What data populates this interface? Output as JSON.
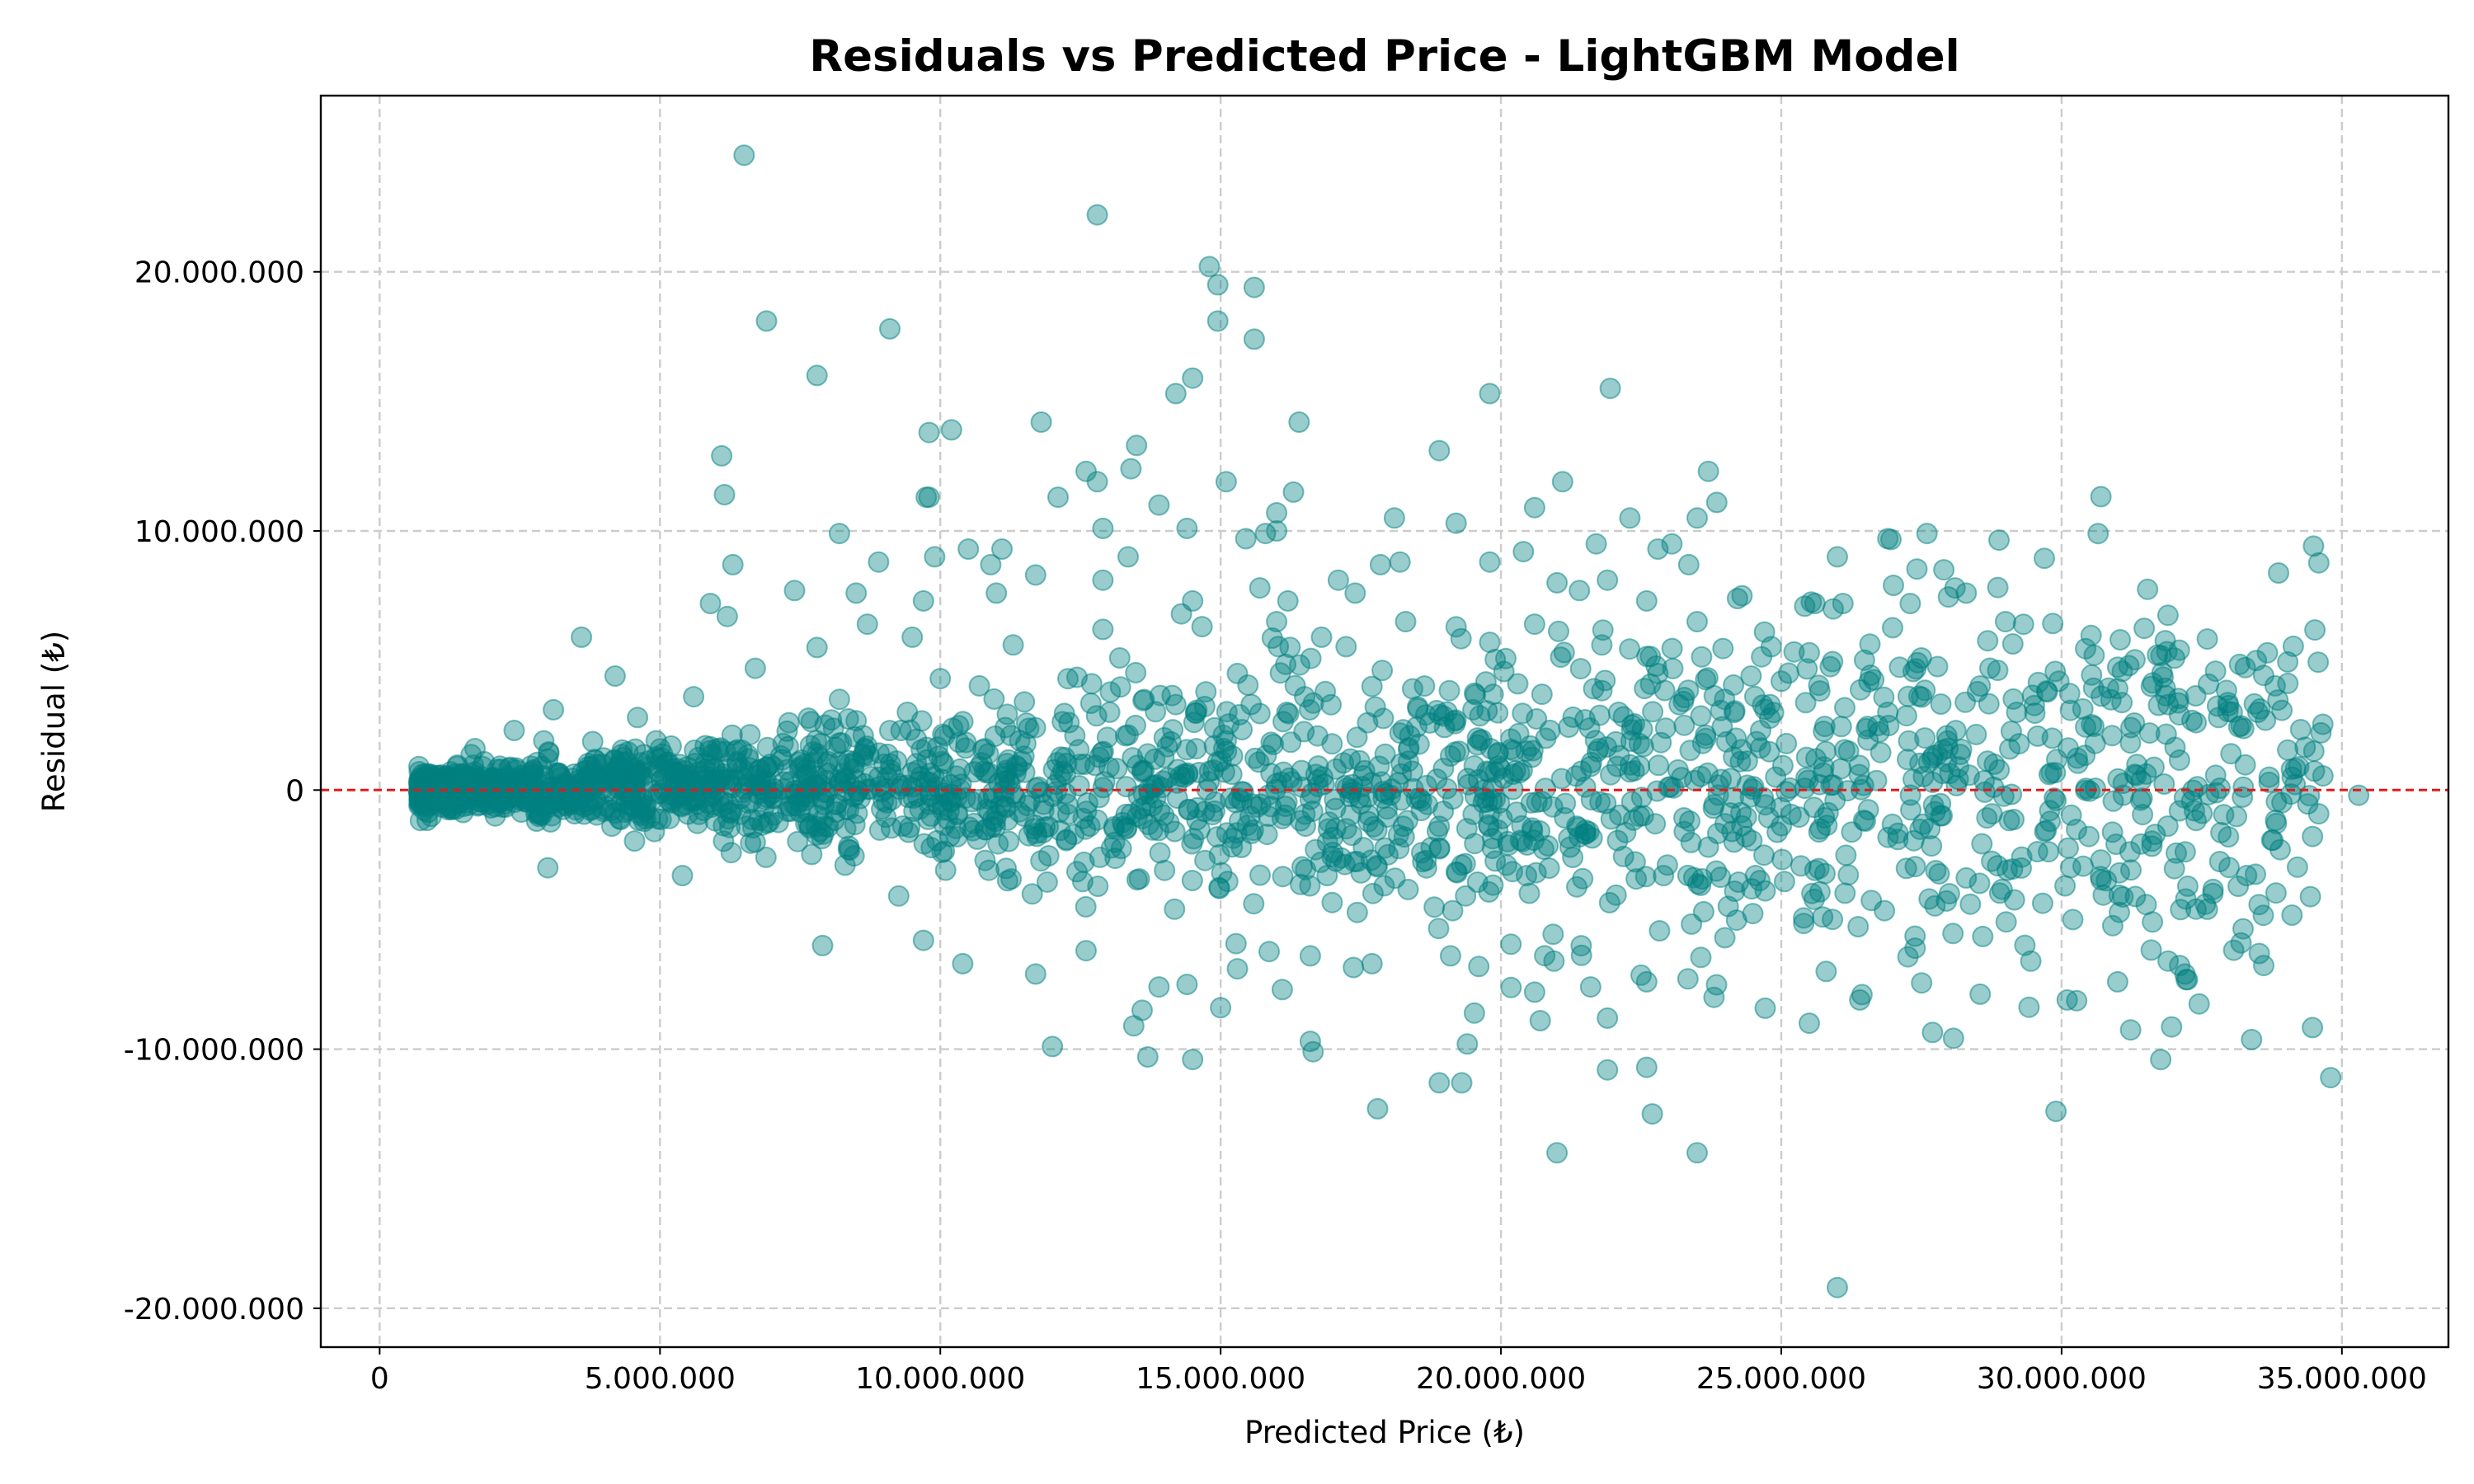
{
  "chart_data": {
    "type": "scatter",
    "title": "Residuals vs Predicted Price - LightGBM Model",
    "xlabel": "Predicted Price (₺)",
    "ylabel": "Residual (₺)",
    "xlim": [
      -1050000,
      36900000
    ],
    "ylim": [
      -21500000,
      26800000
    ],
    "x_ticks": [
      0,
      5000000,
      10000000,
      15000000,
      20000000,
      25000000,
      30000000,
      35000000
    ],
    "x_tick_labels": [
      "0",
      "5.000.000",
      "10.000.000",
      "15.000.000",
      "20.000.000",
      "25.000.000",
      "30.000.000",
      "35.000.000"
    ],
    "y_ticks": [
      -20000000,
      -10000000,
      0,
      10000000,
      20000000
    ],
    "y_tick_labels": [
      "-20.000.000",
      "-10.000.000",
      "0",
      "10.000.000",
      "20.000.000"
    ],
    "grid": true,
    "reference_line": {
      "y": 0,
      "color": "#e31a1c",
      "style": "dashed"
    },
    "point_color": "#008080",
    "point_alpha": 0.4,
    "points": [
      [
        6500000,
        24500000
      ],
      [
        12800000,
        22200000
      ],
      [
        14800000,
        20200000
      ],
      [
        14950000,
        19500000
      ],
      [
        15600000,
        19400000
      ],
      [
        6900000,
        18100000
      ],
      [
        14950000,
        18100000
      ],
      [
        9100000,
        17800000
      ],
      [
        15600000,
        17400000
      ],
      [
        7800000,
        16000000
      ],
      [
        14500000,
        15900000
      ],
      [
        14200000,
        15300000
      ],
      [
        19800000,
        15300000
      ],
      [
        21950000,
        15500000
      ],
      [
        11800000,
        14200000
      ],
      [
        16400000,
        14200000
      ],
      [
        9800000,
        13800000
      ],
      [
        10200000,
        13900000
      ],
      [
        13500000,
        13300000
      ],
      [
        6100000,
        12900000
      ],
      [
        18900000,
        13100000
      ],
      [
        12600000,
        12300000
      ],
      [
        12800000,
        11900000
      ],
      [
        13400000,
        12400000
      ],
      [
        15100000,
        11900000
      ],
      [
        21100000,
        11900000
      ],
      [
        23700000,
        12300000
      ],
      [
        6150000,
        11400000
      ],
      [
        9750000,
        11300000
      ],
      [
        9800000,
        11300000
      ],
      [
        12100000,
        11300000
      ],
      [
        13900000,
        11000000
      ],
      [
        16300000,
        11500000
      ],
      [
        20600000,
        10900000
      ],
      [
        23850000,
        11100000
      ],
      [
        16000000,
        10700000
      ],
      [
        18100000,
        10500000
      ],
      [
        22300000,
        10500000
      ],
      [
        23500000,
        10500000
      ],
      [
        12900000,
        10100000
      ],
      [
        14400000,
        10100000
      ],
      [
        15800000,
        9900000
      ],
      [
        16000000,
        10000000
      ],
      [
        19200000,
        10300000
      ],
      [
        8200000,
        9900000
      ],
      [
        15450000,
        9700000
      ],
      [
        21700000,
        9500000
      ],
      [
        22800000,
        9300000
      ],
      [
        26900000,
        9700000
      ],
      [
        27600000,
        9900000
      ],
      [
        13350000,
        9000000
      ],
      [
        10500000,
        9300000
      ],
      [
        11100000,
        9300000
      ],
      [
        19800000,
        8800000
      ],
      [
        20400000,
        9200000
      ],
      [
        23050000,
        9500000
      ],
      [
        23350000,
        8700000
      ],
      [
        26000000,
        9000000
      ],
      [
        8900000,
        8800000
      ],
      [
        9900000,
        9000000
      ],
      [
        10900000,
        8700000
      ],
      [
        11700000,
        8300000
      ],
      [
        17100000,
        8100000
      ],
      [
        17850000,
        8700000
      ],
      [
        18200000,
        8800000
      ],
      [
        27900000,
        8500000
      ],
      [
        6300000,
        8700000
      ],
      [
        12900000,
        8100000
      ],
      [
        15700000,
        7800000
      ],
      [
        17400000,
        7600000
      ],
      [
        21000000,
        8000000
      ],
      [
        21900000,
        8100000
      ],
      [
        27000000,
        7900000
      ],
      [
        28100000,
        7800000
      ],
      [
        28300000,
        7600000
      ],
      [
        5900000,
        7200000
      ],
      [
        7400000,
        7700000
      ],
      [
        8500000,
        7600000
      ],
      [
        9700000,
        7300000
      ],
      [
        11000000,
        7600000
      ],
      [
        14500000,
        7300000
      ],
      [
        16200000,
        7300000
      ],
      [
        21400000,
        7700000
      ],
      [
        22600000,
        7300000
      ],
      [
        24300000,
        7500000
      ],
      [
        25600000,
        7200000
      ],
      [
        26100000,
        7200000
      ],
      [
        27300000,
        7200000
      ],
      [
        6200000,
        6700000
      ],
      [
        8700000,
        6400000
      ],
      [
        12900000,
        6200000
      ],
      [
        14300000,
        6800000
      ],
      [
        16000000,
        6500000
      ],
      [
        18300000,
        6500000
      ],
      [
        19200000,
        6300000
      ],
      [
        20600000,
        6400000
      ],
      [
        23500000,
        6500000
      ],
      [
        24700000,
        6100000
      ],
      [
        29000000,
        6500000
      ],
      [
        3600000,
        5900000
      ],
      [
        7800000,
        5500000
      ],
      [
        9500000,
        5900000
      ],
      [
        11300000,
        5600000
      ],
      [
        13200000,
        5100000
      ],
      [
        16800000,
        5900000
      ],
      [
        19800000,
        5700000
      ],
      [
        21800000,
        5600000
      ],
      [
        25500000,
        5300000
      ],
      [
        27500000,
        5100000
      ],
      [
        31200000,
        4800000
      ],
      [
        32100000,
        5400000
      ],
      [
        4200000,
        4400000
      ],
      [
        6700000,
        4700000
      ],
      [
        10000000,
        4300000
      ],
      [
        12700000,
        4100000
      ],
      [
        15300000,
        4500000
      ],
      [
        17700000,
        4000000
      ],
      [
        20300000,
        4100000
      ],
      [
        22800000,
        4500000
      ],
      [
        25000000,
        4200000
      ],
      [
        28500000,
        3800000
      ],
      [
        31600000,
        4000000
      ],
      [
        3100000,
        3100000
      ],
      [
        5600000,
        3600000
      ],
      [
        8200000,
        3500000
      ],
      [
        11500000,
        3400000
      ],
      [
        14200000,
        3300000
      ],
      [
        16500000,
        3600000
      ],
      [
        19500000,
        3100000
      ],
      [
        22100000,
        3000000
      ],
      [
        24800000,
        3300000
      ],
      [
        26900000,
        3000000
      ],
      [
        29200000,
        3000000
      ],
      [
        31900000,
        3300000
      ],
      [
        33500000,
        3000000
      ],
      [
        32800000,
        2800000
      ],
      [
        32400000,
        2600000
      ],
      [
        34500000,
        1500000
      ],
      [
        30900000,
        2100000
      ],
      [
        32100000,
        2900000
      ],
      [
        1700000,
        1600000
      ],
      [
        2400000,
        2300000
      ],
      [
        4600000,
        2800000
      ],
      [
        7300000,
        2600000
      ],
      [
        9300000,
        2300000
      ],
      [
        12400000,
        2100000
      ],
      [
        15100000,
        1900000
      ],
      [
        18200000,
        2200000
      ],
      [
        20800000,
        2000000
      ],
      [
        23600000,
        1800000
      ],
      [
        26200000,
        1500000
      ],
      [
        28800000,
        1000000
      ],
      [
        30600000,
        1800000
      ],
      [
        34100000,
        800000
      ],
      [
        33700000,
        300000
      ],
      [
        35300000,
        -200000
      ],
      [
        900000,
        300000
      ],
      [
        1400000,
        -100000
      ],
      [
        2100000,
        800000
      ],
      [
        3000000,
        1200000
      ],
      [
        5200000,
        1700000
      ],
      [
        8000000,
        1100000
      ],
      [
        10700000,
        900000
      ],
      [
        13600000,
        700000
      ],
      [
        16700000,
        600000
      ],
      [
        19600000,
        400000
      ],
      [
        22300000,
        700000
      ],
      [
        24900000,
        500000
      ],
      [
        27700000,
        300000
      ],
      [
        29900000,
        -400000
      ],
      [
        31100000,
        -200000
      ],
      [
        2800000,
        -1200000
      ],
      [
        4900000,
        -1600000
      ],
      [
        7600000,
        -1300000
      ],
      [
        10300000,
        -1800000
      ],
      [
        13100000,
        -1500000
      ],
      [
        16100000,
        -1100000
      ],
      [
        18900000,
        -1400000
      ],
      [
        21500000,
        -1700000
      ],
      [
        24000000,
        -1300000
      ],
      [
        26500000,
        -1200000
      ],
      [
        29700000,
        -1600000
      ],
      [
        30800000,
        -3500000
      ],
      [
        33900000,
        -2300000
      ],
      [
        3000000,
        -3000000
      ],
      [
        5400000,
        -3300000
      ],
      [
        8300000,
        -2900000
      ],
      [
        11200000,
        -3500000
      ],
      [
        14000000,
        -3100000
      ],
      [
        16900000,
        -3300000
      ],
      [
        20100000,
        -2900000
      ],
      [
        22900000,
        -3300000
      ],
      [
        25600000,
        -3100000
      ],
      [
        28000000,
        -4000000
      ],
      [
        30700000,
        -2700000
      ],
      [
        33300000,
        -3300000
      ],
      [
        7900000,
        -6000000
      ],
      [
        9700000,
        -5800000
      ],
      [
        10400000,
        -6700000
      ],
      [
        11700000,
        -7100000
      ],
      [
        12600000,
        -6200000
      ],
      [
        13900000,
        -7600000
      ],
      [
        14400000,
        -7500000
      ],
      [
        15300000,
        -6900000
      ],
      [
        16600000,
        -6400000
      ],
      [
        17700000,
        -6700000
      ],
      [
        19100000,
        -6400000
      ],
      [
        20600000,
        -7800000
      ],
      [
        21600000,
        -7600000
      ],
      [
        22600000,
        -7400000
      ],
      [
        23800000,
        -8000000
      ],
      [
        25800000,
        -7000000
      ],
      [
        26400000,
        -8100000
      ],
      [
        30100000,
        -8100000
      ],
      [
        31000000,
        -7400000
      ],
      [
        31900000,
        -6600000
      ],
      [
        32200000,
        -7100000
      ],
      [
        33200000,
        -5900000
      ],
      [
        32600000,
        -4600000
      ],
      [
        30200000,
        -5000000
      ],
      [
        12000000,
        -9900000
      ],
      [
        13450000,
        -9100000
      ],
      [
        13600000,
        -8500000
      ],
      [
        15000000,
        -8400000
      ],
      [
        16100000,
        -7700000
      ],
      [
        16600000,
        -9700000
      ],
      [
        16650000,
        -10100000
      ],
      [
        19400000,
        -9800000
      ],
      [
        20700000,
        -8900000
      ],
      [
        21900000,
        -8800000
      ],
      [
        25500000,
        -9000000
      ],
      [
        13700000,
        -10300000
      ],
      [
        14500000,
        -10400000
      ],
      [
        17800000,
        -12300000
      ],
      [
        18900000,
        -11300000
      ],
      [
        19300000,
        -11300000
      ],
      [
        22600000,
        -10700000
      ],
      [
        21900000,
        -10800000
      ],
      [
        22700000,
        -12500000
      ],
      [
        21000000,
        -14000000
      ],
      [
        23500000,
        -14000000
      ],
      [
        29900000,
        -12400000
      ],
      [
        34800000,
        -11100000
      ],
      [
        26000000,
        -19200000
      ]
    ]
  }
}
